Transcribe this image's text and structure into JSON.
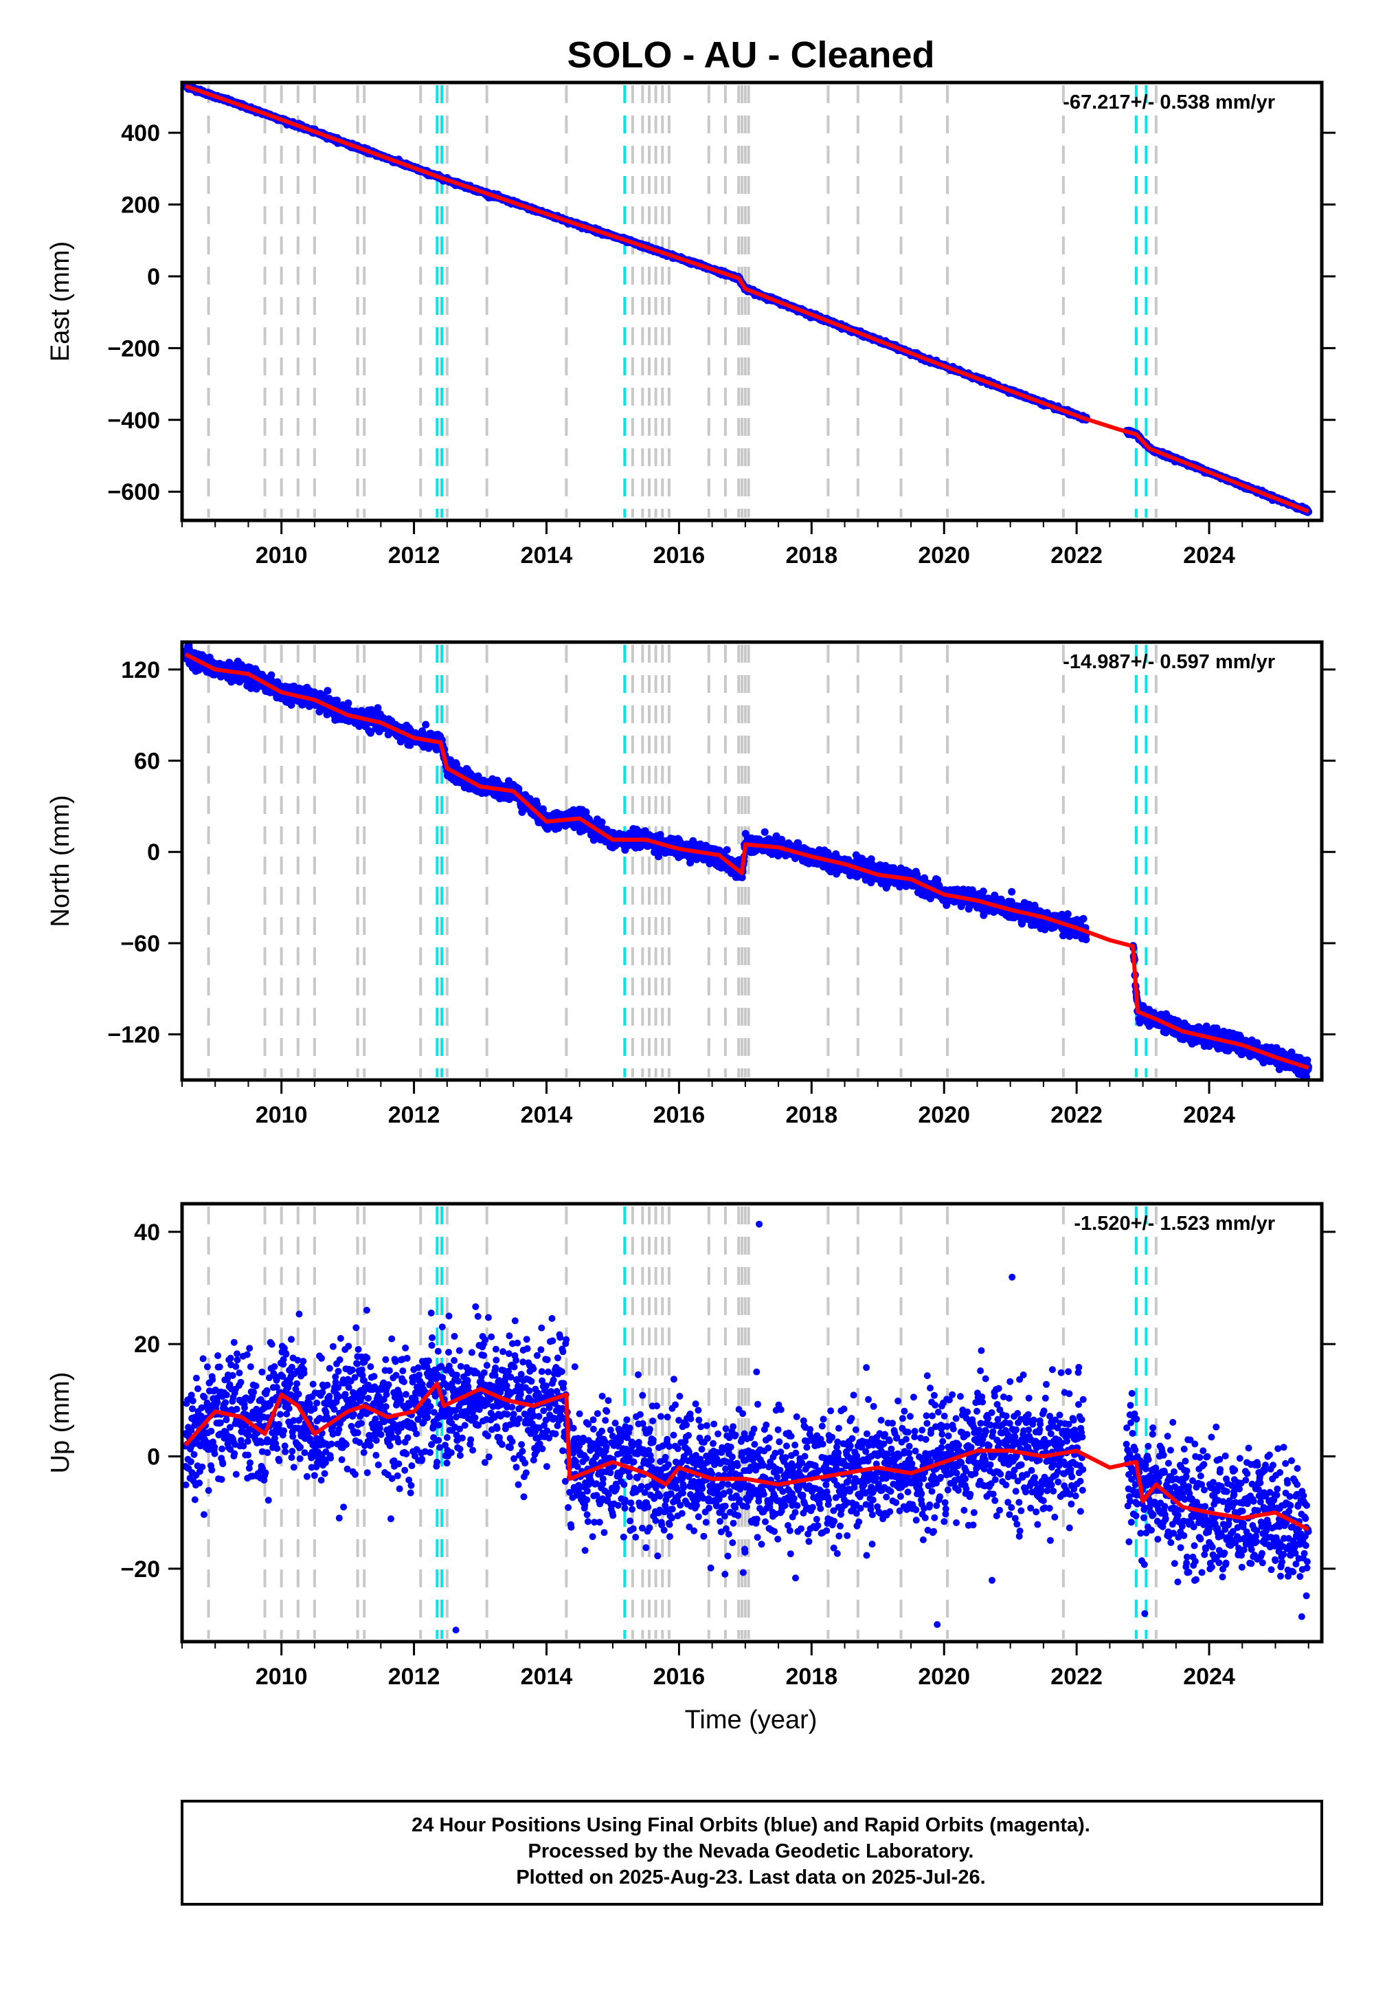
{
  "title": "SOLO  - AU - Cleaned",
  "xlabel": "Time (year)",
  "footer": [
    "24 Hour Positions Using Final Orbits (blue) and Rapid Orbits (magenta).",
    "Processed by the Nevada Geodetic Laboratory.",
    "Plotted on 2025-Aug-23. Last data on 2025-Jul-26."
  ],
  "colors": {
    "data": "#0000ff",
    "model": "#ff0000",
    "equipment_step": "#c8c8c8",
    "earthquake_step": "#00e5e5"
  },
  "steps": {
    "gray": [
      2008.9,
      2009.75,
      2010.0,
      2010.25,
      2010.5,
      2011.15,
      2011.25,
      2012.1,
      2012.5,
      2013.1,
      2014.3,
      2015.3,
      2015.45,
      2015.55,
      2015.65,
      2015.75,
      2015.85,
      2016.45,
      2016.7,
      2016.9,
      2016.95,
      2017.0,
      2017.05,
      2018.25,
      2018.7,
      2019.35,
      2020.05,
      2021.8,
      2023.2
    ],
    "cyan": [
      2012.35,
      2012.42,
      2015.18,
      2022.9,
      2023.05
    ]
  },
  "chart_data": [
    {
      "type": "scatter",
      "name": "east",
      "ylabel": "East (mm)",
      "rate": "-67.217+/- 0.538 mm/yr",
      "xlim": [
        2008.5,
        2025.7
      ],
      "ylim": [
        -680,
        540
      ],
      "xticks": [
        2010,
        2012,
        2014,
        2016,
        2018,
        2020,
        2022,
        2024
      ],
      "yticks": [
        -600,
        -400,
        -200,
        0,
        200,
        400
      ],
      "gaps": [
        [
          2022.15,
          2022.75
        ]
      ],
      "model": {
        "x": [
          2008.55,
          2009.8,
          2012.4,
          2014.3,
          2015.2,
          2016.9,
          2017.0,
          2020.0,
          2022.1,
          2022.7,
          2022.9,
          2023.1,
          2025.5
        ],
        "y": [
          530,
          450,
          275,
          155,
          100,
          -5,
          -35,
          -250,
          -395,
          -430,
          -440,
          -480,
          -655
        ]
      },
      "noise": 2.5
    },
    {
      "type": "scatter",
      "name": "north",
      "ylabel": "North (mm)",
      "rate": "-14.987+/- 0.597 mm/yr",
      "xlim": [
        2008.5,
        2025.7
      ],
      "ylim": [
        -150,
        138
      ],
      "xticks": [
        2010,
        2012,
        2014,
        2016,
        2018,
        2020,
        2022,
        2024
      ],
      "yticks": [
        -120,
        -60,
        0,
        60,
        120
      ],
      "gaps": [
        [
          2022.15,
          2022.85
        ]
      ],
      "model": {
        "x": [
          2008.55,
          2009.0,
          2009.5,
          2010.0,
          2010.5,
          2011.0,
          2011.5,
          2012.0,
          2012.4,
          2012.5,
          2013.0,
          2013.5,
          2014.0,
          2014.5,
          2015.0,
          2015.5,
          2016.0,
          2016.6,
          2016.95,
          2017.0,
          2017.5,
          2018.0,
          2018.5,
          2019.0,
          2019.5,
          2020.0,
          2020.5,
          2021.0,
          2021.5,
          2022.0,
          2022.5,
          2022.85,
          2022.92,
          2023.2,
          2023.6,
          2024.0,
          2024.5,
          2025.0,
          2025.5
        ],
        "y": [
          130,
          120,
          117,
          105,
          100,
          90,
          85,
          75,
          72,
          55,
          43,
          40,
          20,
          22,
          8,
          8,
          2,
          -2,
          -14,
          5,
          3,
          -3,
          -8,
          -15,
          -18,
          -28,
          -32,
          -38,
          -43,
          -50,
          -58,
          -62,
          -105,
          -110,
          -118,
          -122,
          -127,
          -135,
          -142
        ]
      },
      "noise": 2.8
    },
    {
      "type": "scatter",
      "name": "up",
      "ylabel": "Up (mm)",
      "rate": "-1.520+/- 1.523 mm/yr",
      "xlim": [
        2008.5,
        2025.7
      ],
      "ylim": [
        -33,
        45
      ],
      "xticks": [
        2010,
        2012,
        2014,
        2016,
        2018,
        2020,
        2022,
        2024
      ],
      "yticks": [
        -20,
        0,
        20,
        40
      ],
      "gaps": [
        [
          2022.1,
          2022.75
        ]
      ],
      "model": {
        "x": [
          2008.55,
          2009.0,
          2009.4,
          2009.75,
          2010.0,
          2010.25,
          2010.5,
          2011.0,
          2011.25,
          2011.6,
          2012.0,
          2012.35,
          2012.45,
          2013.0,
          2013.4,
          2013.8,
          2014.3,
          2014.35,
          2015.0,
          2015.5,
          2015.8,
          2016.0,
          2016.5,
          2017.0,
          2017.5,
          2018.0,
          2018.5,
          2019.0,
          2019.5,
          2020.0,
          2020.5,
          2021.0,
          2021.5,
          2022.0,
          2022.5,
          2022.9,
          2023.0,
          2023.2,
          2023.6,
          2024.0,
          2024.5,
          2025.0,
          2025.5
        ],
        "y": [
          2,
          8,
          7,
          4,
          11,
          9,
          4,
          8,
          9,
          7,
          8,
          13,
          9,
          12,
          10,
          9,
          11,
          -4,
          -1,
          -3,
          -5,
          -2,
          -4,
          -4,
          -5,
          -4,
          -3,
          -2,
          -3,
          -1,
          1,
          1,
          0,
          1,
          -2,
          -1,
          -8,
          -5,
          -9,
          -10,
          -11,
          -10,
          -13
        ]
      },
      "noise": 5.5
    }
  ]
}
